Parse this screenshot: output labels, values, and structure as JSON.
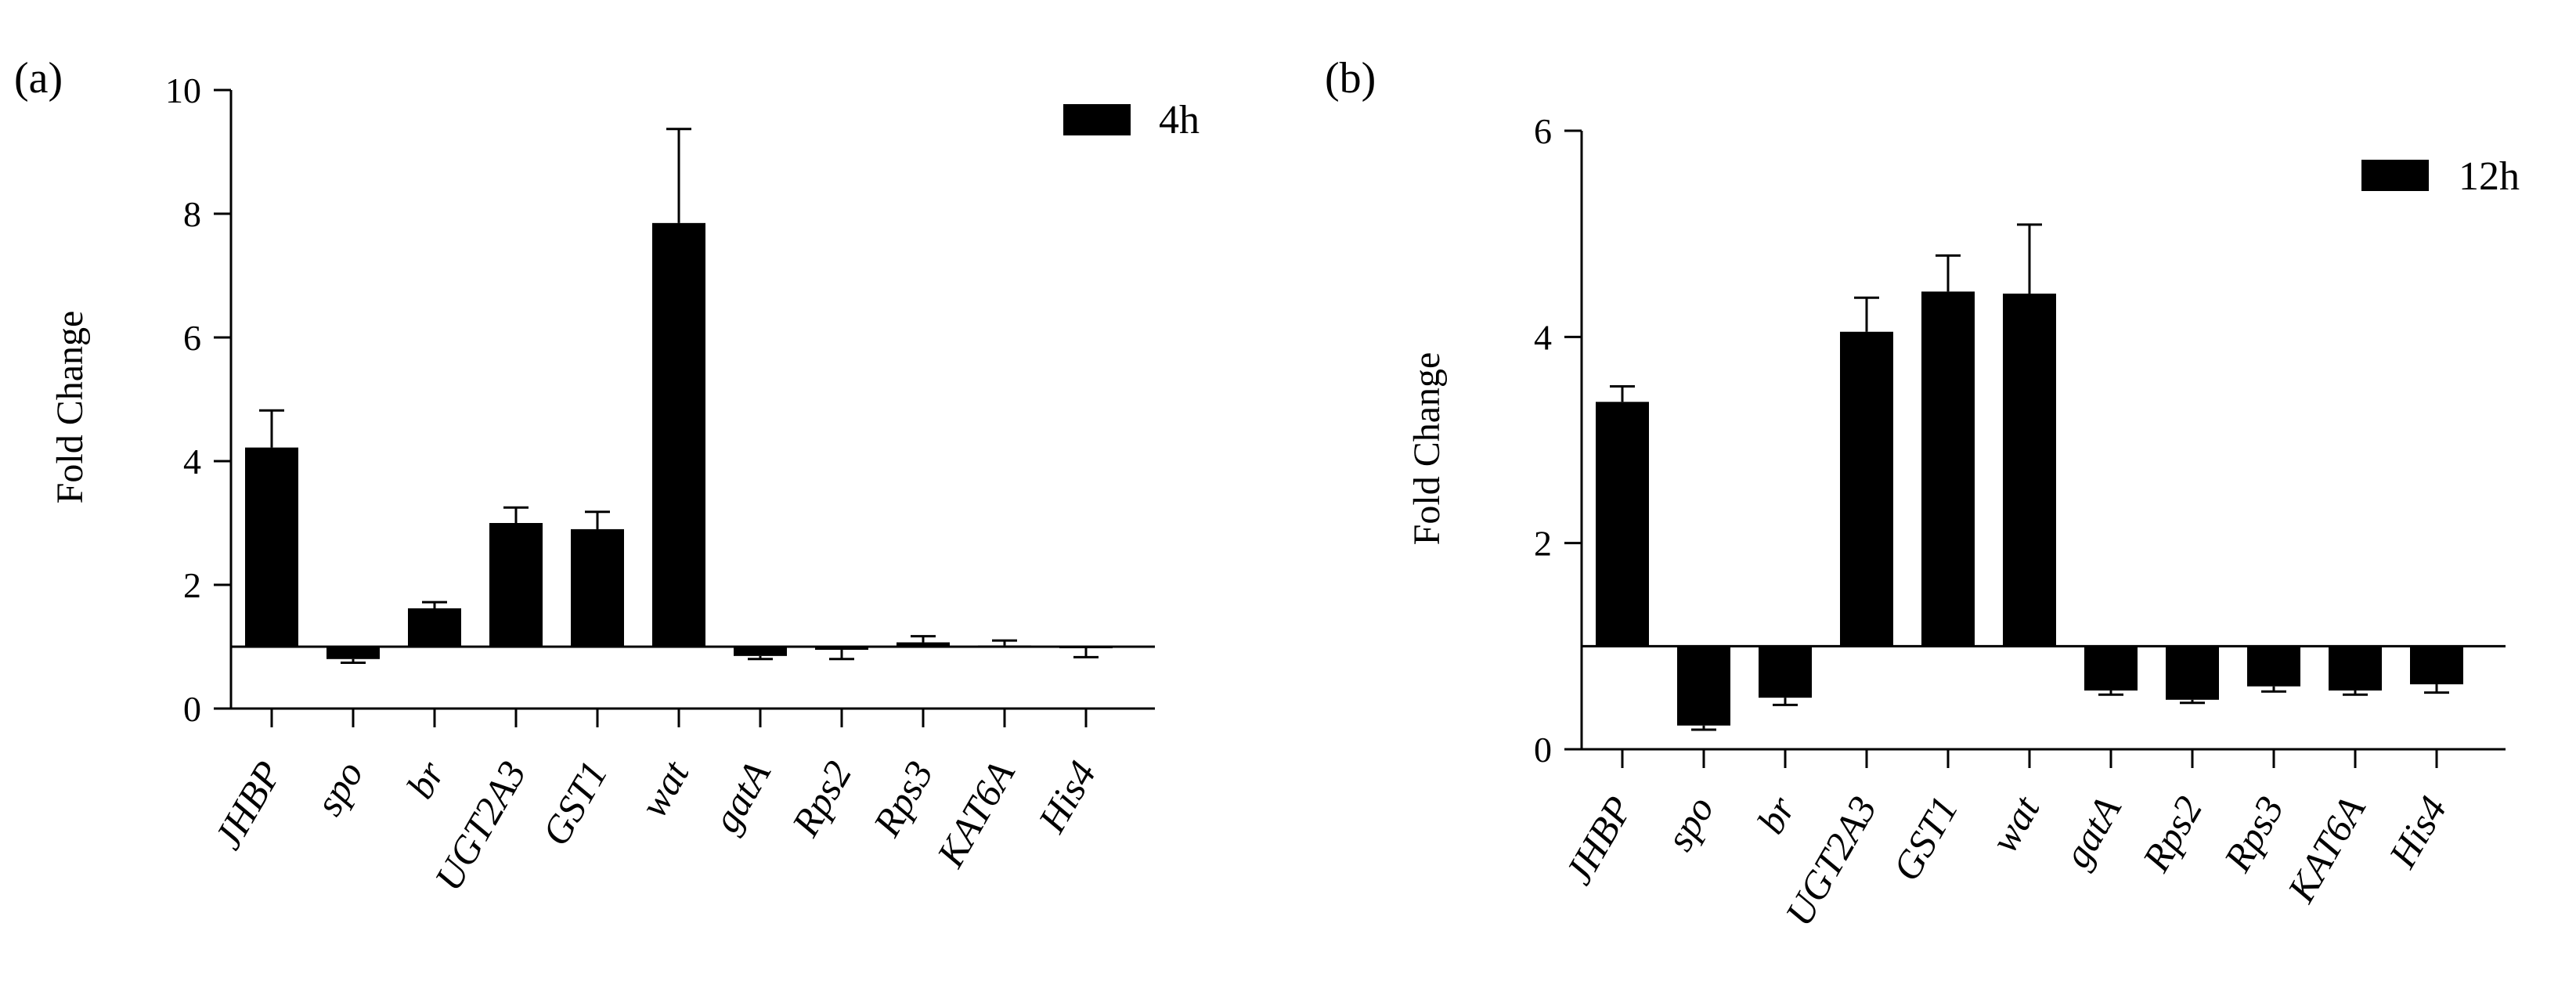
{
  "chart_data": [
    {
      "panel_label": "(a)",
      "type": "bar",
      "title": "",
      "ylabel": "Fold  Change",
      "xlabel": "",
      "ylim": [
        0,
        10
      ],
      "yticks": [
        "0",
        "2",
        "4",
        "6",
        "8",
        "10"
      ],
      "baseline": 1,
      "legend": "4h",
      "categories": [
        "JHBP",
        "spo",
        "br",
        "UGT2A3",
        "GST1",
        "wat",
        "gatA",
        "Rps2",
        "Rps3",
        "KAT6A",
        "His4"
      ],
      "values": [
        4.22,
        0.8,
        1.62,
        3.0,
        2.9,
        7.85,
        0.85,
        0.95,
        1.07,
        1.02,
        0.98
      ],
      "errors": [
        0.6,
        0.06,
        0.1,
        0.25,
        0.28,
        1.52,
        0.05,
        0.15,
        0.1,
        0.08,
        0.15
      ]
    },
    {
      "panel_label": "(b)",
      "type": "bar",
      "title": "",
      "ylabel": "Fold  Change",
      "xlabel": "",
      "ylim": [
        0,
        6
      ],
      "yticks": [
        "0",
        "2",
        "4",
        "6"
      ],
      "baseline": 1,
      "legend": "12h",
      "categories": [
        "JHBP",
        "spo",
        "br",
        "UGT2A3",
        "GST1",
        "wat",
        "gatA",
        "Rps2",
        "Rps3",
        "KAT6A",
        "His4"
      ],
      "values": [
        3.37,
        0.23,
        0.5,
        4.05,
        4.44,
        4.42,
        0.57,
        0.48,
        0.61,
        0.57,
        0.63
      ],
      "errors": [
        0.15,
        0.04,
        0.07,
        0.33,
        0.35,
        0.67,
        0.04,
        0.03,
        0.05,
        0.04,
        0.08
      ]
    }
  ]
}
